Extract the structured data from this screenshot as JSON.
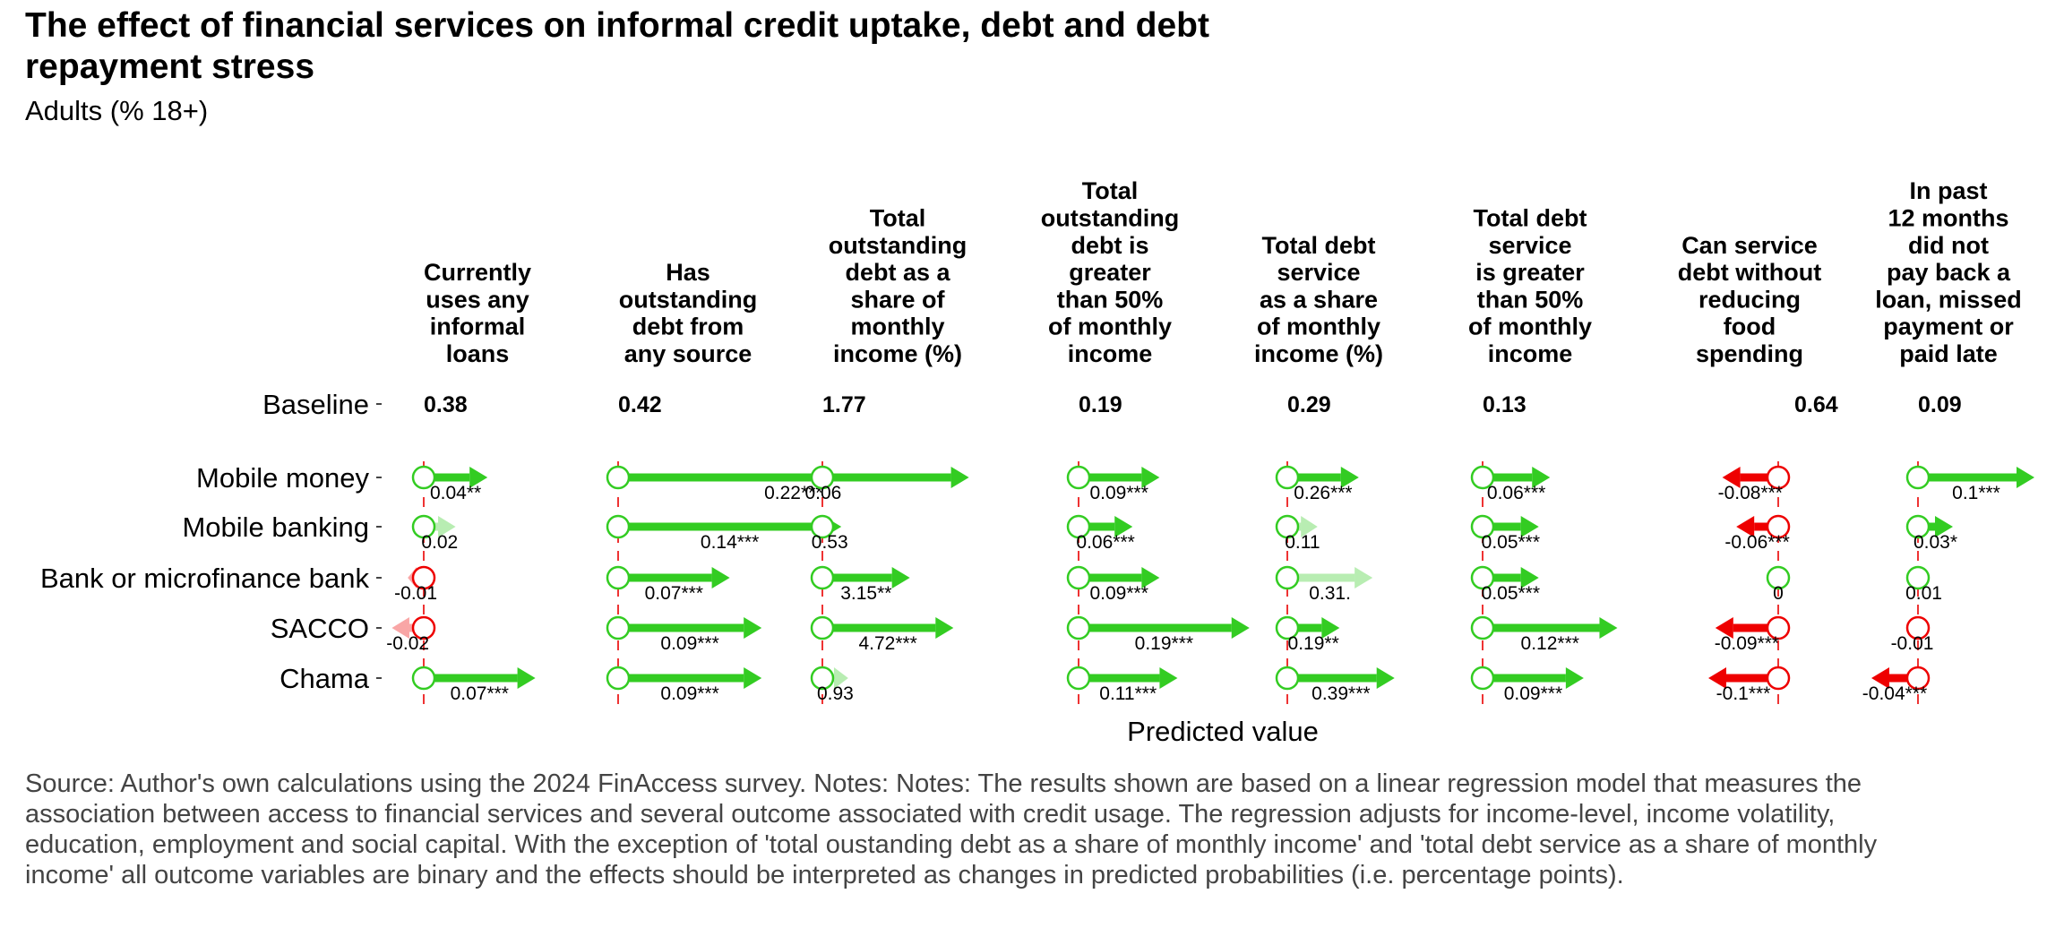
{
  "title": "The effect of financial services on informal credit uptake, debt and debt repayment stress",
  "subtitle": "Adults (% 18+)",
  "note": "Source: Author's own calculations using the 2024 FinAccess survey. Notes: Notes: The results shown are based on a linear regression model that measures the association between access to financial services and several outcome associated with credit usage. The regression adjusts for income-level, income volatility, education, employment and social capital. With the exception of 'total oustanding debt as a share of monthly income' and 'total debt service as a share of monthly income' all outcome variables are binary and the effects should be interpreted as changes in predicted probabilities (i.e. percentage points).",
  "chart_data": {
    "type": "arrow",
    "title": "The effect of financial services on informal credit uptake, debt and debt repayment stress",
    "subtitle": "Adults (% 18+)",
    "xlabel": "Predicted value",
    "baseline_label": "Baseline",
    "colors": {
      "positive": "#33cc22",
      "negative": "#ee0000",
      "baseline_line": "#ee3333"
    },
    "rows": [
      "Mobile money",
      "Mobile banking",
      "Bank or microfinance bank",
      "SACCO",
      "Chama"
    ],
    "outcomes": [
      {
        "label": [
          "Currently",
          "uses any",
          "informal",
          "loans"
        ],
        "baseline": 0.38,
        "baseline_label": "0.38",
        "effects": [
          0.04,
          0.02,
          -0.01,
          -0.02,
          0.07
        ],
        "labels": [
          "0.04**",
          "0.02",
          "-0.01",
          "-0.02",
          "0.07***"
        ]
      },
      {
        "label": [
          "Has",
          "outstanding",
          "debt from",
          "any source"
        ],
        "baseline": 0.42,
        "baseline_label": "0.42",
        "effects": [
          0.22,
          0.14,
          0.07,
          0.09,
          0.09
        ],
        "labels": [
          "0.22***",
          "0.14***",
          "0.07***",
          "0.09***",
          "0.09***"
        ]
      },
      {
        "label": [
          "Total",
          "outstanding",
          "debt as a",
          "share of",
          "monthly",
          "income (%)"
        ],
        "baseline": 1.77,
        "baseline_label": "1.77",
        "effects": [
          0.06,
          0.53,
          3.15,
          4.72,
          0.93
        ],
        "labels": [
          "0.06",
          "0.53",
          "3.15**",
          "4.72***",
          "0.93"
        ]
      },
      {
        "label": [
          "Total",
          "outstanding",
          "debt is",
          "greater",
          "than 50%",
          "of monthly",
          "income"
        ],
        "baseline": 0.19,
        "baseline_label": "0.19",
        "effects": [
          0.09,
          0.06,
          0.09,
          0.19,
          0.11
        ],
        "labels": [
          "0.09***",
          "0.06***",
          "0.09***",
          "0.19***",
          "0.11***"
        ]
      },
      {
        "label": [
          "Total debt",
          "service",
          "as a share",
          "of monthly",
          "income (%)"
        ],
        "baseline": 0.29,
        "baseline_label": "0.29",
        "effects": [
          0.26,
          0.11,
          0.31,
          0.19,
          0.39
        ],
        "labels": [
          "0.26***",
          "0.11",
          "0.31.",
          "0.19**",
          "0.39***"
        ]
      },
      {
        "label": [
          "Total debt",
          "service",
          "is greater",
          "than 50%",
          "of monthly",
          "income"
        ],
        "baseline": 0.13,
        "baseline_label": "0.13",
        "effects": [
          0.06,
          0.05,
          0.05,
          0.12,
          0.09
        ],
        "labels": [
          "0.06***",
          "0.05***",
          "0.05***",
          "0.12***",
          "0.09***"
        ]
      },
      {
        "label": [
          "Can service",
          "debt without",
          "reducing",
          "food",
          "spending"
        ],
        "baseline": 0.64,
        "baseline_label": "0.64",
        "effects": [
          -0.08,
          -0.06,
          0,
          -0.09,
          -0.1
        ],
        "labels": [
          "-0.08***",
          "-0.06***",
          "0",
          "-0.09***",
          "-0.1***"
        ]
      },
      {
        "label": [
          "In past",
          "12 months",
          "did not",
          "pay back a",
          "loan, missed",
          "payment or",
          "paid late"
        ],
        "baseline": 0.09,
        "baseline_label": "0.09",
        "effects": [
          0.1,
          0.03,
          0.01,
          -0.01,
          -0.04
        ],
        "labels": [
          "0.1***",
          "0.03*",
          "0.01",
          "-0.01",
          "-0.04***"
        ]
      }
    ]
  }
}
